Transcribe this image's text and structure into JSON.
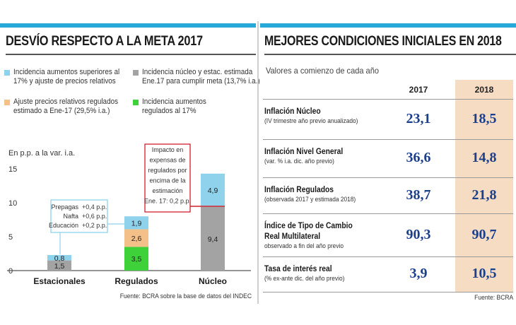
{
  "left": {
    "title": "DESVÍO RESPECTO A LA META 2017",
    "legend": [
      {
        "text1": "Incidencia aumentos superiores al",
        "text2": "17% y ajuste de precios relativos",
        "color": "#8fd2ec"
      },
      {
        "text1": "Incidencia núcleo y estac. estimada",
        "text2": "Ene.17 para cumplir meta (13,7% i.a.)",
        "color": "#a3a3a3"
      },
      {
        "text1": "Ajuste precios relativos regulados",
        "text2": "estimado a Ene-17 (29,5% i.a.)",
        "color": "#f3c08a"
      },
      {
        "text1": "Incidencia aumentos",
        "text2": "regulados al 17%",
        "color": "#3fd13a"
      }
    ],
    "unit_label": "En p.p. a la var. i.a.",
    "callout": {
      "rows": [
        {
          "name": "Prepagas",
          "value": "+0,4 p.p."
        },
        {
          "name": "Nafta",
          "value": "+0,6 p.p."
        },
        {
          "name": "Educación",
          "value": "+0,2 p.p."
        }
      ]
    },
    "impact_note": [
      "Impacto en",
      "expensas de",
      "regulados por",
      "encima de la",
      "estimación",
      "Ene. 17: 0,2 p.p."
    ],
    "source": "Fuente: BCRA sobre la base de datos del INDEC"
  },
  "right": {
    "title": "MEJORES CONDICIONES INICIALES EN 2018",
    "subtitle": "Valores a comienzo de cada año",
    "col_headers": [
      "2017",
      "2018"
    ],
    "rows": [
      {
        "label": [
          "Inflación Núcleo"
        ],
        "sub": "(IV trimestre año previo anualizado)",
        "v2017": "23,1",
        "v2018": "18,5"
      },
      {
        "label": [
          "Inflación Nivel General"
        ],
        "sub": "(var. % i.a. dic. año previo)",
        "v2017": "36,6",
        "v2018": "14,8"
      },
      {
        "label": [
          "Inflación Regulados"
        ],
        "sub": "(observada 2017 y estimada 2018)",
        "v2017": "38,7",
        "v2018": "21,8"
      },
      {
        "label": [
          "Índice de Tipo de Cambio",
          "Real Multilateral"
        ],
        "sub": "observado a fin del año previo",
        "v2017": "90,3",
        "v2018": "90,7"
      },
      {
        "label": [
          "Tasa de interés real"
        ],
        "sub": "(% ex-ante dic. del año previo)",
        "v2017": "3,9",
        "v2018": "10,5"
      }
    ],
    "source": "Fuente: BCRA"
  },
  "colors": {
    "accent_blue": "#27a9d8",
    "value_blue": "#1c3f8c",
    "highlight_col": "#f6dcc3",
    "callout_border": "#8fd2ec",
    "impact_border": "#d0202a"
  },
  "chart_data": {
    "type": "bar",
    "stacked": true,
    "categories": [
      "Estacionales",
      "Regulados",
      "Núcleo"
    ],
    "ylabel": "En p.p. a la var. i.a.",
    "ylim": [
      0,
      15
    ],
    "yticks": [
      "0",
      "5",
      "10",
      "15"
    ],
    "series": [
      {
        "name": "Incidencia núcleo y estac. estimada Ene.17 para cumplir meta (13,7% i.a.)",
        "color": "#a3a3a3",
        "values": [
          1.5,
          0,
          9.4
        ],
        "labels": [
          "1,5",
          "",
          "9,4"
        ]
      },
      {
        "name": "Incidencia aumentos regulados al 17%",
        "color": "#3fd13a",
        "values": [
          0,
          3.5,
          0
        ],
        "labels": [
          "",
          "3,5",
          ""
        ]
      },
      {
        "name": "Ajuste precios relativos regulados estimado a Ene-17 (29,5% i.a.)",
        "color": "#f3c08a",
        "values": [
          0,
          2.6,
          0
        ],
        "labels": [
          "",
          "2,6",
          ""
        ]
      },
      {
        "name": "Incidencia aumentos superiores al 17% y ajuste de precios relativos",
        "color": "#8fd2ec",
        "values": [
          0.8,
          1.9,
          4.9
        ],
        "labels": [
          "0,8",
          "1,9",
          "4,9"
        ]
      }
    ],
    "grid": false
  }
}
